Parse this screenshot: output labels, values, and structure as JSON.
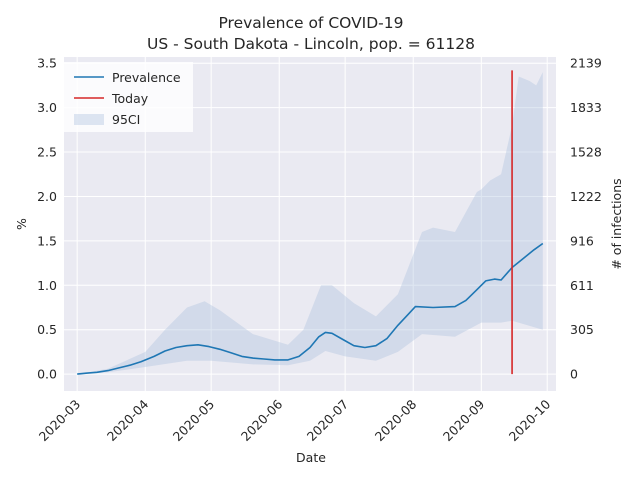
{
  "chart_data": {
    "type": "line",
    "title_line1": "Prevalence of COVID-19",
    "title_line2": "US - South Dakota - Lincoln, pop. = 61128",
    "xlabel": "Date",
    "ylabel": "%",
    "ylabel_right": "# of infections",
    "xlim": [
      "2020-02-24",
      "2020-10-05"
    ],
    "ylim": [
      -0.19,
      3.57
    ],
    "x_ticks": [
      "2020-03",
      "2020-04",
      "2020-05",
      "2020-06",
      "2020-07",
      "2020-08",
      "2020-09",
      "2020-10"
    ],
    "y_ticks": [
      "0.0",
      "0.5",
      "1.0",
      "1.5",
      "2.0",
      "2.5",
      "3.0",
      "3.5"
    ],
    "y_ticks_right": [
      "0",
      "305",
      "611",
      "916",
      "1222",
      "1528",
      "1833",
      "2139"
    ],
    "legend": [
      "Prevalence",
      "Today",
      "95CI"
    ],
    "legend_position": "upper-left",
    "grid": true,
    "colors": {
      "prevalence": "#1f77b4",
      "today": "#d62728",
      "ci": "#b0c4de"
    },
    "today": {
      "date": "2020-09-15",
      "y_from": 0.0,
      "y_to": 3.42
    },
    "series": [
      {
        "name": "Prevalence",
        "points": [
          [
            "2020-03-01",
            0.0
          ],
          [
            "2020-03-05",
            0.01
          ],
          [
            "2020-03-10",
            0.02
          ],
          [
            "2020-03-15",
            0.04
          ],
          [
            "2020-03-20",
            0.07
          ],
          [
            "2020-03-25",
            0.1
          ],
          [
            "2020-03-30",
            0.14
          ],
          [
            "2020-04-05",
            0.2
          ],
          [
            "2020-04-10",
            0.26
          ],
          [
            "2020-04-15",
            0.3
          ],
          [
            "2020-04-20",
            0.32
          ],
          [
            "2020-04-25",
            0.33
          ],
          [
            "2020-04-30",
            0.31
          ],
          [
            "2020-05-05",
            0.28
          ],
          [
            "2020-05-10",
            0.24
          ],
          [
            "2020-05-15",
            0.2
          ],
          [
            "2020-05-20",
            0.18
          ],
          [
            "2020-05-25",
            0.17
          ],
          [
            "2020-05-30",
            0.16
          ],
          [
            "2020-06-05",
            0.16
          ],
          [
            "2020-06-10",
            0.2
          ],
          [
            "2020-06-15",
            0.3
          ],
          [
            "2020-06-19",
            0.42
          ],
          [
            "2020-06-22",
            0.47
          ],
          [
            "2020-06-25",
            0.46
          ],
          [
            "2020-06-30",
            0.39
          ],
          [
            "2020-07-05",
            0.32
          ],
          [
            "2020-07-10",
            0.3
          ],
          [
            "2020-07-15",
            0.32
          ],
          [
            "2020-07-20",
            0.4
          ],
          [
            "2020-07-25",
            0.55
          ],
          [
            "2020-07-30",
            0.68
          ],
          [
            "2020-08-02",
            0.76
          ],
          [
            "2020-08-10",
            0.75
          ],
          [
            "2020-08-20",
            0.76
          ],
          [
            "2020-08-25",
            0.83
          ],
          [
            "2020-08-30",
            0.95
          ],
          [
            "2020-09-03",
            1.05
          ],
          [
            "2020-09-07",
            1.07
          ],
          [
            "2020-09-10",
            1.06
          ],
          [
            "2020-09-15",
            1.2
          ],
          [
            "2020-09-20",
            1.3
          ],
          [
            "2020-09-25",
            1.4
          ],
          [
            "2020-09-29",
            1.47
          ]
        ]
      },
      {
        "name": "95CI",
        "lower": [
          [
            "2020-03-01",
            0.0
          ],
          [
            "2020-03-15",
            0.02
          ],
          [
            "2020-04-01",
            0.08
          ],
          [
            "2020-04-20",
            0.15
          ],
          [
            "2020-05-01",
            0.15
          ],
          [
            "2020-05-20",
            0.11
          ],
          [
            "2020-06-05",
            0.1
          ],
          [
            "2020-06-15",
            0.15
          ],
          [
            "2020-06-22",
            0.26
          ],
          [
            "2020-07-01",
            0.2
          ],
          [
            "2020-07-15",
            0.15
          ],
          [
            "2020-07-25",
            0.25
          ],
          [
            "2020-08-05",
            0.45
          ],
          [
            "2020-08-20",
            0.42
          ],
          [
            "2020-09-01",
            0.58
          ],
          [
            "2020-09-10",
            0.58
          ],
          [
            "2020-09-15",
            0.6
          ],
          [
            "2020-09-29",
            0.5
          ]
        ],
        "upper": [
          [
            "2020-03-01",
            0.0
          ],
          [
            "2020-03-15",
            0.06
          ],
          [
            "2020-04-01",
            0.25
          ],
          [
            "2020-04-10",
            0.5
          ],
          [
            "2020-04-20",
            0.75
          ],
          [
            "2020-04-28",
            0.82
          ],
          [
            "2020-05-05",
            0.72
          ],
          [
            "2020-05-20",
            0.45
          ],
          [
            "2020-06-05",
            0.33
          ],
          [
            "2020-06-12",
            0.5
          ],
          [
            "2020-06-20",
            1.0
          ],
          [
            "2020-06-25",
            1.0
          ],
          [
            "2020-07-05",
            0.8
          ],
          [
            "2020-07-15",
            0.65
          ],
          [
            "2020-07-25",
            0.9
          ],
          [
            "2020-08-05",
            1.6
          ],
          [
            "2020-08-10",
            1.65
          ],
          [
            "2020-08-20",
            1.6
          ],
          [
            "2020-08-30",
            2.05
          ],
          [
            "2020-09-01",
            2.08
          ],
          [
            "2020-09-05",
            2.18
          ],
          [
            "2020-09-10",
            2.25
          ],
          [
            "2020-09-15",
            2.8
          ],
          [
            "2020-09-18",
            3.35
          ],
          [
            "2020-09-23",
            3.3
          ],
          [
            "2020-09-26",
            3.25
          ],
          [
            "2020-09-29",
            3.4
          ]
        ]
      }
    ]
  }
}
